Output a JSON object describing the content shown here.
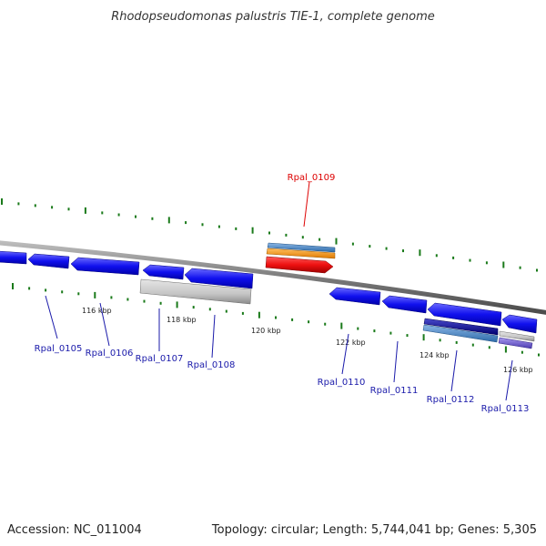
{
  "title": "Rhodopseudomonas palustris TIE-1, complete genome",
  "accession_text": "Accession: NC_011004",
  "summary_text": "Topology: circular; Length: 5,744,041 bp; Genes: 5,305",
  "colors": {
    "backbone": "#7a7a7a",
    "forward_gene": "#1010ee",
    "reverse_gene": "#1010ee",
    "rna": "#bdbdbd",
    "highlight_gene": "#ee1111",
    "highlight_label": "#dd0000",
    "gene_label": "#1a1aaa",
    "tick": "#1a7a1a",
    "orange_feature": "#f0900a",
    "steel_feature": "#4a86c8",
    "purple_feature": "#6a5acd"
  },
  "tick_labels": [
    "116 kbp",
    "118 kbp",
    "120 kbp",
    "122 kbp",
    "124 kbp",
    "126 kbp"
  ],
  "genes": [
    {
      "name": "Rpal_0105",
      "highlight": false
    },
    {
      "name": "Rpal_0106",
      "highlight": false
    },
    {
      "name": "Rpal_0107",
      "highlight": false
    },
    {
      "name": "Rpal_0108",
      "highlight": false
    },
    {
      "name": "Rpal_0109",
      "highlight": true
    },
    {
      "name": "Rpal_0110",
      "highlight": false
    },
    {
      "name": "Rpal_0111",
      "highlight": false
    },
    {
      "name": "Rpal_0112",
      "highlight": false
    },
    {
      "name": "Rpal_0113",
      "highlight": false
    }
  ]
}
